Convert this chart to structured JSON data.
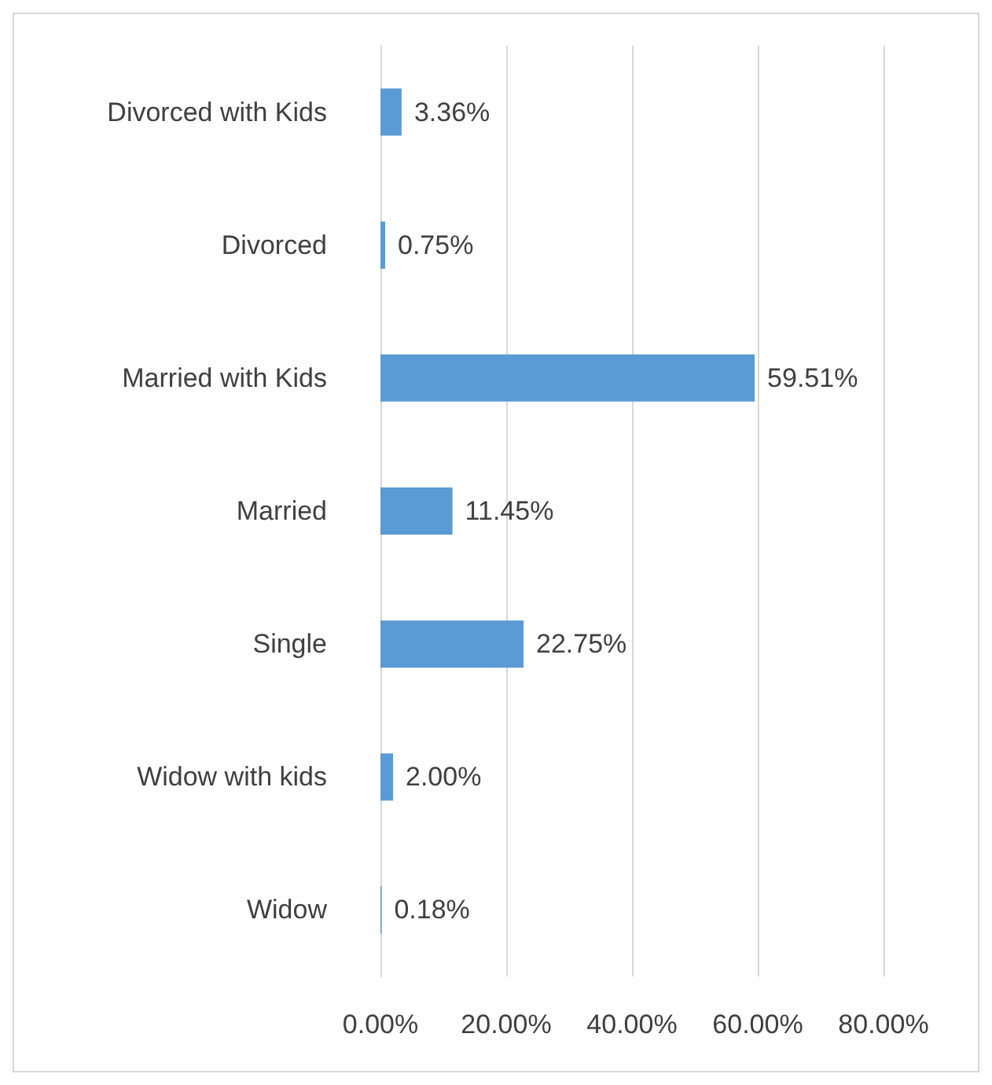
{
  "chart_data": {
    "type": "bar",
    "orientation": "horizontal",
    "categories": [
      "Divorced with Kids",
      "Divorced",
      "Married with Kids",
      "Married",
      "Single",
      "Widow with kids",
      "Widow"
    ],
    "values": [
      3.36,
      0.75,
      59.51,
      11.45,
      22.75,
      2.0,
      0.18
    ],
    "value_labels": [
      "3.36%",
      "0.75%",
      "59.51%",
      "11.45%",
      "22.75%",
      "2.00%",
      "0.18%"
    ],
    "color": "#5b9bd5",
    "xlim": [
      0,
      80
    ],
    "xticks": [
      {
        "value": 0,
        "label": "0.00%"
      },
      {
        "value": 20,
        "label": "20.00%"
      },
      {
        "value": 40,
        "label": "40.00%"
      },
      {
        "value": 60,
        "label": "60.00%"
      },
      {
        "value": 80,
        "label": "80.00%"
      }
    ],
    "grid": "x"
  }
}
